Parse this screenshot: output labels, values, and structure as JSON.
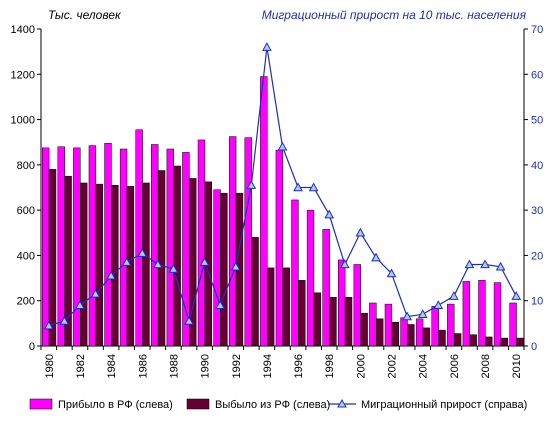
{
  "chart_data": {
    "type": "bar",
    "left_axis_label": "Тыс. человек",
    "right_axis_label": "Миграционный прирост на 10 тыс. населения",
    "x": [
      1980,
      1981,
      1982,
      1983,
      1984,
      1985,
      1986,
      1987,
      1988,
      1989,
      1990,
      1991,
      1992,
      1993,
      1994,
      1995,
      1996,
      1997,
      1998,
      1999,
      2000,
      2001,
      2002,
      2003,
      2004,
      2005,
      2006,
      2007,
      2008,
      2009,
      2010
    ],
    "x_tick_labels": [
      "1980",
      "1982",
      "1984",
      "1986",
      "1988",
      "1990",
      "1992",
      "1994",
      "1996",
      "1998",
      "2000",
      "2002",
      "2004",
      "2006",
      "2008",
      "2010"
    ],
    "y_left": {
      "min": 0,
      "max": 1400,
      "ticks": [
        0,
        200,
        400,
        600,
        800,
        1000,
        1200,
        1400
      ]
    },
    "y_right": {
      "min": 0,
      "max": 70,
      "ticks": [
        0,
        10,
        20,
        30,
        40,
        50,
        60,
        70
      ]
    },
    "series": [
      {
        "name": "Прибыло в РФ (слева)",
        "axis": "left",
        "kind": "bar",
        "color": "#ff00ff",
        "values": [
          875,
          880,
          875,
          885,
          895,
          870,
          955,
          890,
          870,
          855,
          910,
          690,
          925,
          920,
          1190,
          865,
          645,
          600,
          515,
          380,
          360,
          190,
          185,
          125,
          120,
          175,
          185,
          285,
          290,
          280,
          190
        ]
      },
      {
        "name": "Выбыло из РФ (слева)",
        "axis": "left",
        "kind": "bar",
        "color": "#660033",
        "values": [
          780,
          750,
          720,
          715,
          710,
          705,
          720,
          775,
          795,
          740,
          725,
          675,
          675,
          480,
          345,
          345,
          290,
          235,
          215,
          215,
          145,
          120,
          105,
          95,
          80,
          70,
          55,
          50,
          40,
          35,
          35
        ]
      },
      {
        "name": "Миграционный прирост (справа)",
        "axis": "right",
        "kind": "line",
        "color": "#1f2dbf",
        "values": [
          4.5,
          5.5,
          9,
          11.5,
          15.5,
          18.5,
          20.5,
          18,
          17,
          5.5,
          18.5,
          9,
          17.5,
          35.5,
          66,
          44,
          35,
          35,
          29,
          18,
          25,
          19.5,
          16,
          6.5,
          7,
          9,
          11,
          18,
          18,
          17.5,
          11
        ]
      }
    ],
    "legend_position": "bottom",
    "grid": false
  }
}
